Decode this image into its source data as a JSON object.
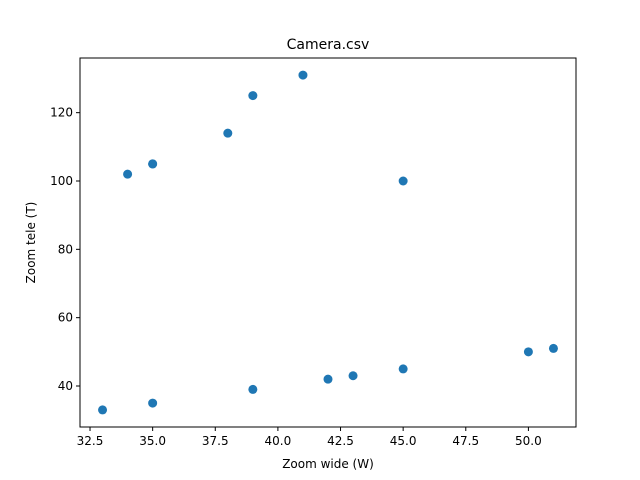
{
  "chart_data": {
    "type": "scatter",
    "title": "Camera.csv",
    "xlabel": "Zoom wide (W)",
    "ylabel": "Zoom tele (T)",
    "xlim": [
      32.1,
      51.9
    ],
    "ylim": [
      28,
      136
    ],
    "grid": false,
    "x_ticks": [
      32.5,
      35.0,
      37.5,
      40.0,
      42.5,
      45.0,
      47.5,
      50.0
    ],
    "x_tick_labels": [
      "32.5",
      "35.0",
      "37.5",
      "40.0",
      "42.5",
      "45.0",
      "47.5",
      "50.0"
    ],
    "y_ticks": [
      40,
      60,
      80,
      100,
      120
    ],
    "y_tick_labels": [
      "40",
      "60",
      "80",
      "100",
      "120"
    ],
    "color": "#1f77b4",
    "points": [
      {
        "x": 33,
        "y": 33
      },
      {
        "x": 34,
        "y": 102
      },
      {
        "x": 35,
        "y": 105
      },
      {
        "x": 35,
        "y": 105
      },
      {
        "x": 35,
        "y": 35
      },
      {
        "x": 38,
        "y": 114
      },
      {
        "x": 39,
        "y": 125
      },
      {
        "x": 39,
        "y": 39
      },
      {
        "x": 41,
        "y": 131
      },
      {
        "x": 42,
        "y": 42
      },
      {
        "x": 43,
        "y": 43
      },
      {
        "x": 45,
        "y": 100
      },
      {
        "x": 45,
        "y": 45
      },
      {
        "x": 50,
        "y": 50
      },
      {
        "x": 51,
        "y": 51
      }
    ]
  }
}
